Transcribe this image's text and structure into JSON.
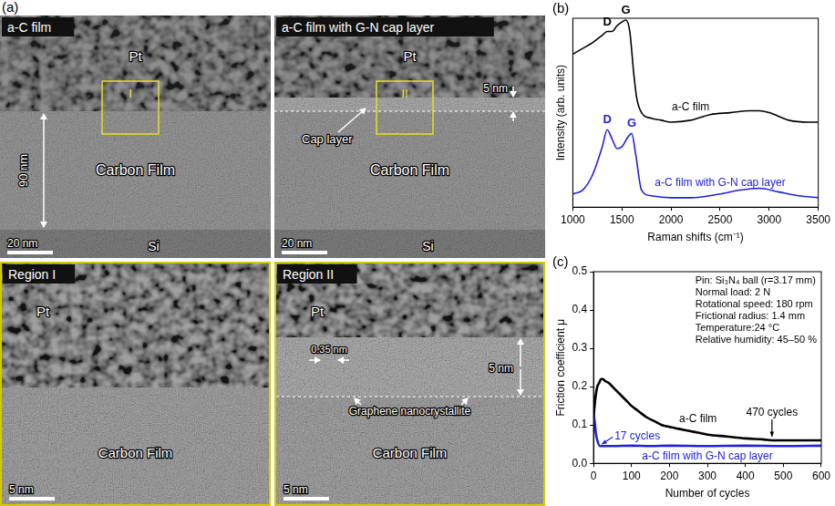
{
  "tem": {
    "panel_label": "(a)",
    "overview": [
      {
        "title": "a-C film",
        "pt": "Pt",
        "film": "Carbon Film",
        "substrate": "Si",
        "region": "I",
        "thickness": "90 nm",
        "scale_bar": "20 nm"
      },
      {
        "title": "a-C film with G-N cap layer",
        "pt": "Pt",
        "film": "Carbon Film",
        "substrate": "Si",
        "region": "II",
        "cap": "Cap layer",
        "cap_thickness": "5 nm",
        "scale_bar": "20 nm"
      }
    ],
    "closeups": [
      {
        "title": "Region I",
        "pt": "Pt",
        "film": "Carbon Film",
        "scale_bar": "5 nm"
      },
      {
        "title": "Region II",
        "pt": "Pt",
        "film": "Carbon Film",
        "scale_bar": "5 nm",
        "cap_thickness": "5 nm",
        "spacing": "0.35 nm",
        "feature": "Graphene nanocrystallite"
      }
    ]
  },
  "chart_data": [
    {
      "type": "line",
      "panel_label": "(b)",
      "xlabel": "Raman shifts (cm⁻¹)",
      "ylabel": "Intensity (arb. units)",
      "xlim": [
        1000,
        3500
      ],
      "xticks": [
        1000,
        1500,
        2000,
        2500,
        3000,
        3500
      ],
      "ylim": [
        0,
        10
      ],
      "yticks": [],
      "tick_labels": "x",
      "grid": false,
      "series": [
        {
          "name": "a-C film",
          "color": "#000000",
          "x": [
            1000,
            1100,
            1200,
            1300,
            1350,
            1400,
            1450,
            1500,
            1540,
            1580,
            1620,
            1650,
            1700,
            1800,
            1900,
            2000,
            2200,
            2400,
            2600,
            2800,
            2900,
            3000,
            3200,
            3400,
            3500
          ],
          "values": [
            8.1,
            8.4,
            8.7,
            9.1,
            9.3,
            9.3,
            9.6,
            9.8,
            9.9,
            9.3,
            7.1,
            5.8,
            5.0,
            4.7,
            4.6,
            4.5,
            4.6,
            4.9,
            5.0,
            5.1,
            5.1,
            5.0,
            4.6,
            4.5,
            4.5
          ]
        },
        {
          "name": "a-C film with G-N cap layer",
          "color": "#2020e0",
          "x": [
            1000,
            1100,
            1200,
            1300,
            1350,
            1400,
            1450,
            1500,
            1560,
            1600,
            1640,
            1700,
            1800,
            2000,
            2200,
            2500,
            2700,
            2900,
            3100,
            3300,
            3500
          ],
          "values": [
            0.7,
            0.9,
            1.7,
            3.2,
            4.1,
            3.6,
            3.1,
            3.2,
            3.7,
            3.9,
            2.8,
            0.9,
            0.6,
            0.5,
            0.5,
            0.7,
            0.9,
            1.0,
            0.8,
            0.6,
            0.5
          ]
        }
      ],
      "annotations": [
        {
          "text": "D",
          "x": 1350,
          "series": "a-C film"
        },
        {
          "text": "G",
          "x": 1540,
          "series": "a-C film"
        },
        {
          "text": "D",
          "x": 1350,
          "series": "a-C film with G-N cap layer"
        },
        {
          "text": "G",
          "x": 1600,
          "series": "a-C film with G-N cap layer"
        }
      ]
    },
    {
      "type": "line",
      "panel_label": "(c)",
      "xlabel": "Number of cycles",
      "ylabel": "Friction coefficient μ",
      "xlim": [
        0,
        600
      ],
      "xticks": [
        0,
        100,
        200,
        300,
        400,
        500,
        600
      ],
      "ylim": [
        0,
        0.5
      ],
      "yticks": [
        {
          "value": 0,
          "label": "0.0"
        },
        0.1,
        0.2,
        0.3,
        0.4,
        0.5
      ],
      "grid": false,
      "series": [
        {
          "name": "a-C film",
          "color": "#000000",
          "x": [
            0,
            5,
            10,
            15,
            20,
            25,
            30,
            40,
            50,
            60,
            70,
            80,
            90,
            100,
            120,
            140,
            160,
            180,
            200,
            225,
            250,
            275,
            300,
            350,
            400,
            450,
            470,
            500,
            550,
            600
          ],
          "values": [
            0.12,
            0.17,
            0.2,
            0.21,
            0.22,
            0.22,
            0.215,
            0.21,
            0.2,
            0.19,
            0.18,
            0.17,
            0.16,
            0.15,
            0.135,
            0.12,
            0.11,
            0.1,
            0.095,
            0.09,
            0.085,
            0.08,
            0.075,
            0.07,
            0.065,
            0.062,
            0.06,
            0.06,
            0.06,
            0.06
          ]
        },
        {
          "name": "a-C film with G-N cap layer",
          "color": "#2020e0",
          "x": [
            0,
            3,
            6,
            10,
            17,
            25,
            50,
            100,
            150,
            200,
            300,
            400,
            500,
            600
          ],
          "values": [
            0.13,
            0.11,
            0.08,
            0.06,
            0.045,
            0.045,
            0.045,
            0.046,
            0.045,
            0.046,
            0.045,
            0.046,
            0.045,
            0.046
          ]
        }
      ],
      "annotations": [
        {
          "text": "17 cycles",
          "x": 17,
          "series": "a-C film with G-N cap layer"
        },
        {
          "text": "470 cycles",
          "x": 470,
          "series": "a-C film"
        }
      ],
      "conditions": [
        "Pin: Si₃N₄ ball (r=3.17 mm)",
        "Normal load: 2 N",
        "Rotational speed: 180 rpm",
        "Frictional radius: 1.4 mm",
        "Temperature:24 °C",
        "Relative humidity: 45–50 %"
      ]
    }
  ]
}
